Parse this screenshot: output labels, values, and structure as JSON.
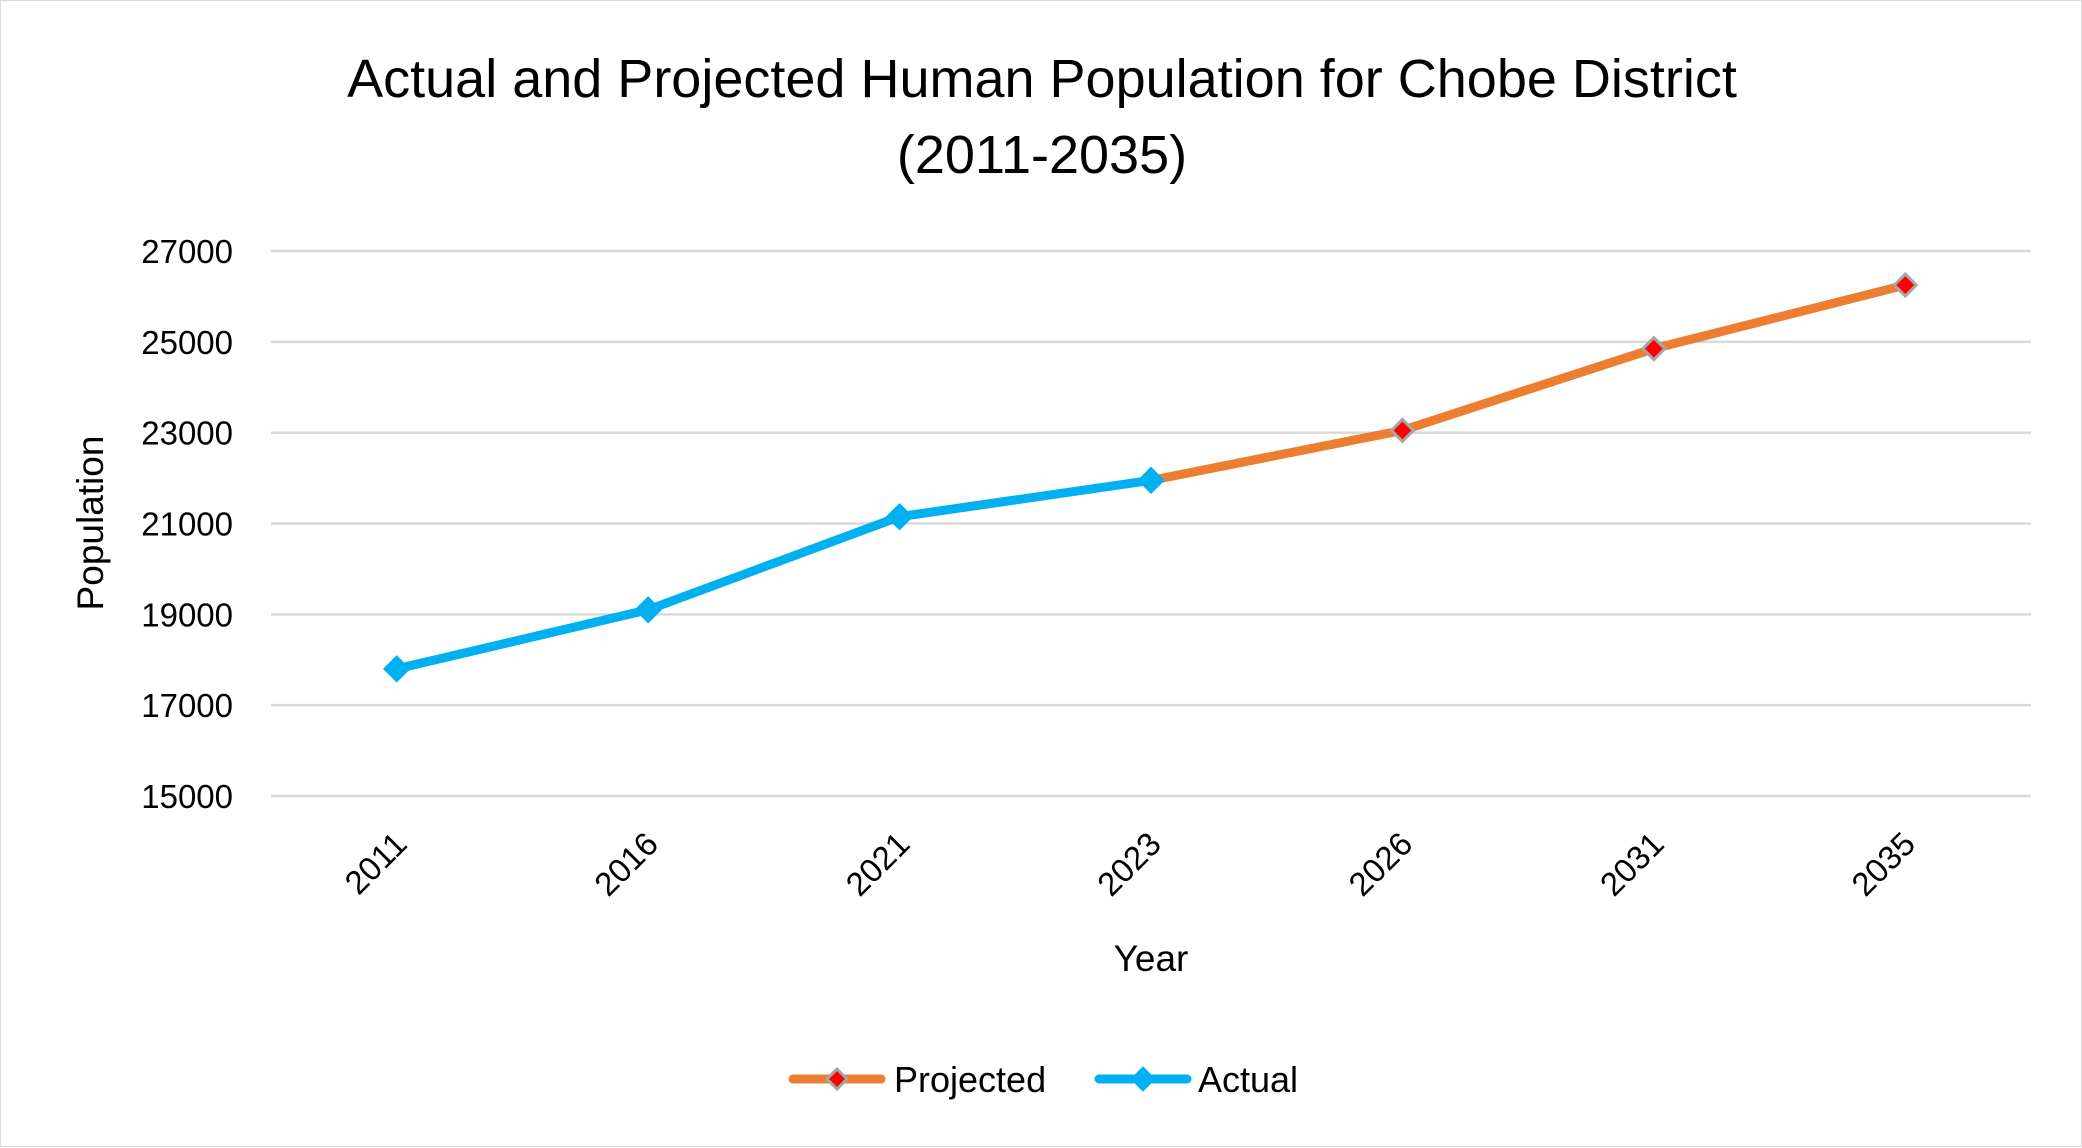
{
  "chart_data": {
    "type": "line",
    "title_line1": "Actual and Projected Human Population for Chobe District",
    "title_line2": "(2011-2035)",
    "xlabel": "Year",
    "ylabel": "Population",
    "categories": [
      "2011",
      "2016",
      "2021",
      "2023",
      "2026",
      "2031",
      "2035"
    ],
    "ylim": [
      15000,
      27000
    ],
    "yticks": [
      "15000",
      "17000",
      "19000",
      "21000",
      "23000",
      "25000",
      "27000"
    ],
    "grid": true,
    "legend_position": "bottom",
    "series": [
      {
        "name": "Projected",
        "color": "#ED7D31",
        "marker_color": "#FF0000",
        "marker": "diamond",
        "values": [
          null,
          null,
          null,
          21950,
          23050,
          24850,
          26250
        ]
      },
      {
        "name": "Actual",
        "color": "#00B0F0",
        "marker_color": "#00B0F0",
        "marker": "diamond",
        "values": [
          17800,
          19100,
          21150,
          21950,
          null,
          null,
          null
        ]
      }
    ]
  }
}
